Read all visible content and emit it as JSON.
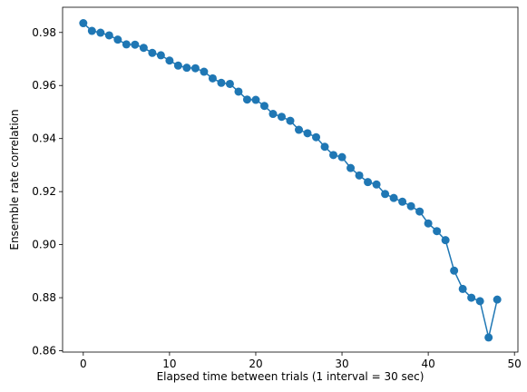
{
  "chart_data": {
    "type": "line",
    "xlabel": "Elapsed time between trials (1 interval = 30 sec)",
    "ylabel": "Ensemble rate correlation",
    "xlim": [
      -2.4,
      50.4
    ],
    "ylim": [
      0.8595,
      0.9895
    ],
    "xticks": [
      0,
      10,
      20,
      30,
      40,
      50
    ],
    "xtick_labels": [
      "0",
      "10",
      "20",
      "30",
      "40",
      "50"
    ],
    "yticks": [
      0.86,
      0.88,
      0.9,
      0.92,
      0.94,
      0.96,
      0.98
    ],
    "ytick_labels": [
      "0.86",
      "0.88",
      "0.90",
      "0.92",
      "0.94",
      "0.96",
      "0.98"
    ],
    "grid": false,
    "color": "#1f77b4",
    "marker": "circle",
    "series": [
      {
        "x": [
          0,
          1,
          2,
          3,
          4,
          5,
          6,
          7,
          8,
          9,
          10,
          11,
          12,
          13,
          14,
          15,
          16,
          17,
          18,
          19,
          20,
          21,
          22,
          23,
          24,
          25,
          26,
          27,
          28,
          29,
          30,
          31,
          32,
          33,
          34,
          35,
          36,
          37,
          38,
          39,
          40,
          41,
          42,
          43,
          44,
          45,
          46,
          47,
          48
        ],
        "y": [
          0.9835,
          0.9806,
          0.9799,
          0.9789,
          0.9773,
          0.9755,
          0.9754,
          0.9742,
          0.9723,
          0.9714,
          0.9694,
          0.9675,
          0.9667,
          0.9665,
          0.9652,
          0.9627,
          0.961,
          0.9606,
          0.9577,
          0.9547,
          0.9546,
          0.9523,
          0.9493,
          0.9482,
          0.9467,
          0.9433,
          0.942,
          0.9405,
          0.9369,
          0.9338,
          0.933,
          0.9289,
          0.9261,
          0.9236,
          0.9227,
          0.9191,
          0.9176,
          0.9162,
          0.9145,
          0.9125,
          0.908,
          0.9051,
          0.9017,
          0.8902,
          0.8833,
          0.88,
          0.8787,
          0.865,
          0.8793
        ]
      }
    ]
  }
}
